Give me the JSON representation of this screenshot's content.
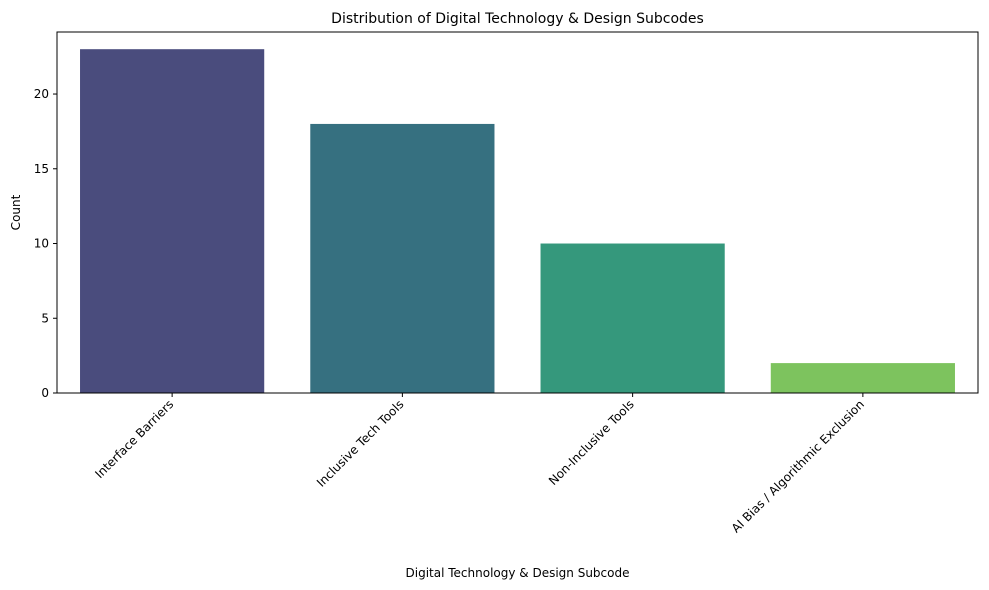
{
  "chart_data": {
    "type": "bar",
    "title": "Distribution of Digital Technology & Design Subcodes",
    "xlabel": "Digital Technology & Design Subcode",
    "ylabel": "Count",
    "categories": [
      "Interface Barriers",
      "Inclusive Tech Tools",
      "Non-Inclusive Tools",
      "AI Bias / Algorithmic Exclusion"
    ],
    "values": [
      23,
      18,
      10,
      2
    ],
    "colors": [
      "#4a4c7d",
      "#367080",
      "#35987c",
      "#7dc35e"
    ],
    "ylim": [
      0,
      24.15
    ],
    "yticks": [
      0,
      5,
      10,
      15,
      20
    ],
    "grid": false,
    "legend": "none"
  }
}
